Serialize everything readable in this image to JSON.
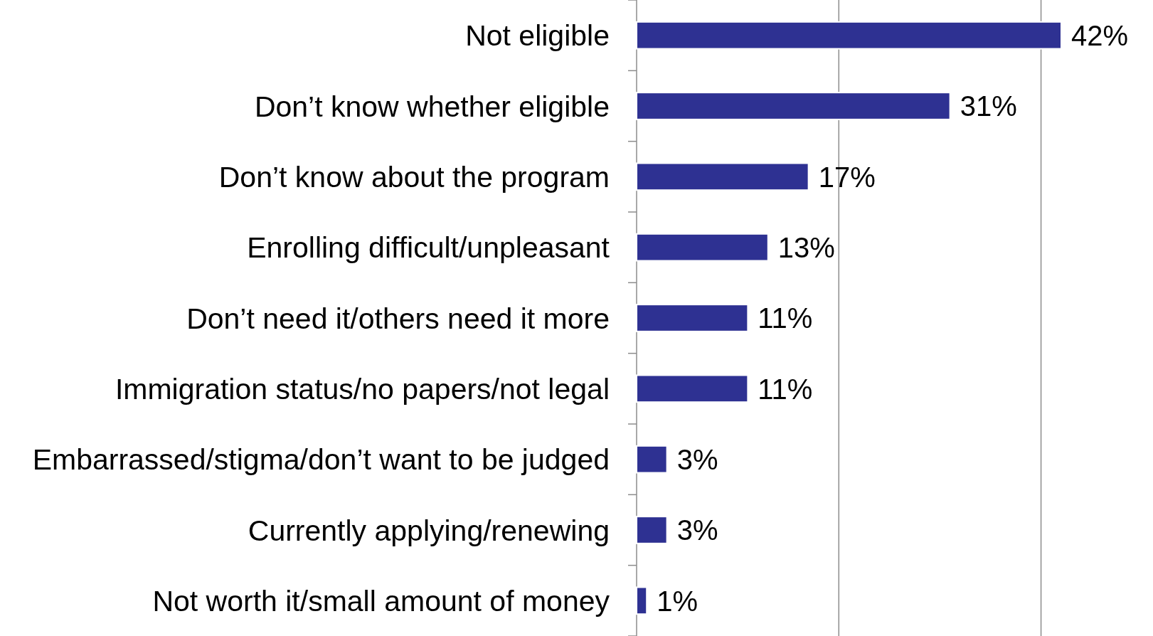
{
  "chart_data": {
    "type": "bar",
    "orientation": "horizontal",
    "categories": [
      "Not eligible",
      "Don’t know whether eligible",
      "Don’t know about the program",
      "Enrolling difficult/unpleasant",
      "Don’t need it/others need it more",
      "Immigration status/no papers/not legal",
      "Embarrassed/stigma/don’t want to be judged",
      "Currently applying/renewing",
      "Not worth it/small amount of money"
    ],
    "values": [
      42,
      31,
      17,
      13,
      11,
      11,
      3,
      3,
      1
    ],
    "value_labels": [
      "42%",
      "31%",
      "17%",
      "13%",
      "11%",
      "11%",
      "3%",
      "3%",
      "1%"
    ],
    "color": "#2e3192",
    "ref_lines": [
      {
        "axis": "x",
        "value": 20,
        "color": "#8c8c8c"
      },
      {
        "axis": "x",
        "value": 40,
        "color": "#8c8c8c"
      }
    ],
    "tick_labels": "y"
  }
}
